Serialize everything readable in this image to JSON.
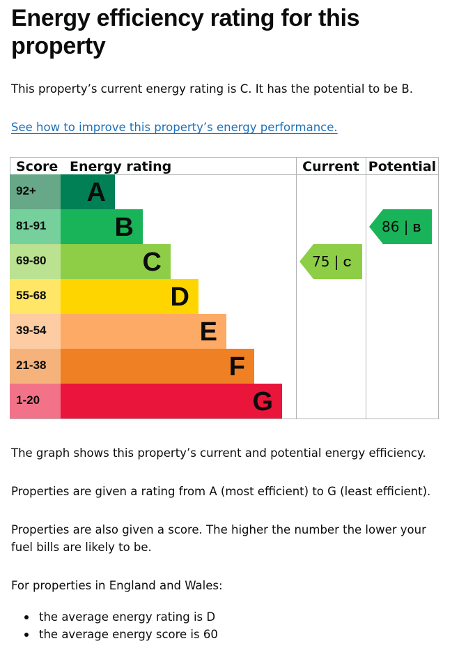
{
  "heading": "Energy efficiency rating for this property",
  "intro": "This property’s current energy rating is C. It has the potential to be B.",
  "improve_link": "See how to improve this property’s energy performance.",
  "chart_data": {
    "type": "bar",
    "headers": {
      "score": "Score",
      "rating": "Energy rating",
      "current": "Current",
      "potential": "Potential"
    },
    "bands": [
      {
        "score": "92+",
        "letter": "A",
        "color": "#008054",
        "score_bg": "#66a887"
      },
      {
        "score": "81-91",
        "letter": "B",
        "color": "#19b459",
        "score_bg": "#75d09b"
      },
      {
        "score": "69-80",
        "letter": "C",
        "color": "#8dce46",
        "score_bg": "#bbe290"
      },
      {
        "score": "55-68",
        "letter": "D",
        "color": "#ffd500",
        "score_bg": "#ffe666"
      },
      {
        "score": "39-54",
        "letter": "E",
        "color": "#fcaa65",
        "score_bg": "#fdcca3"
      },
      {
        "score": "21-38",
        "letter": "F",
        "color": "#ef8023",
        "score_bg": "#f5b37b"
      },
      {
        "score": "1-20",
        "letter": "G",
        "color": "#e9153b",
        "score_bg": "#f27389"
      }
    ],
    "current": {
      "value": 75,
      "letter": "C",
      "color": "#8dce46"
    },
    "potential": {
      "value": 86,
      "letter": "B",
      "color": "#19b459"
    }
  },
  "graph_note": "The graph shows this property’s current and potential energy efficiency.",
  "ratings_note": "Properties are given a rating from A (most efficient) to G (least efficient).",
  "score_note": "Properties are also given a score. The higher the number the lower your fuel bills are likely to be.",
  "region_note": "For properties in England and Wales:",
  "averages": [
    "the average energy rating is D",
    "the average energy score is 60"
  ]
}
